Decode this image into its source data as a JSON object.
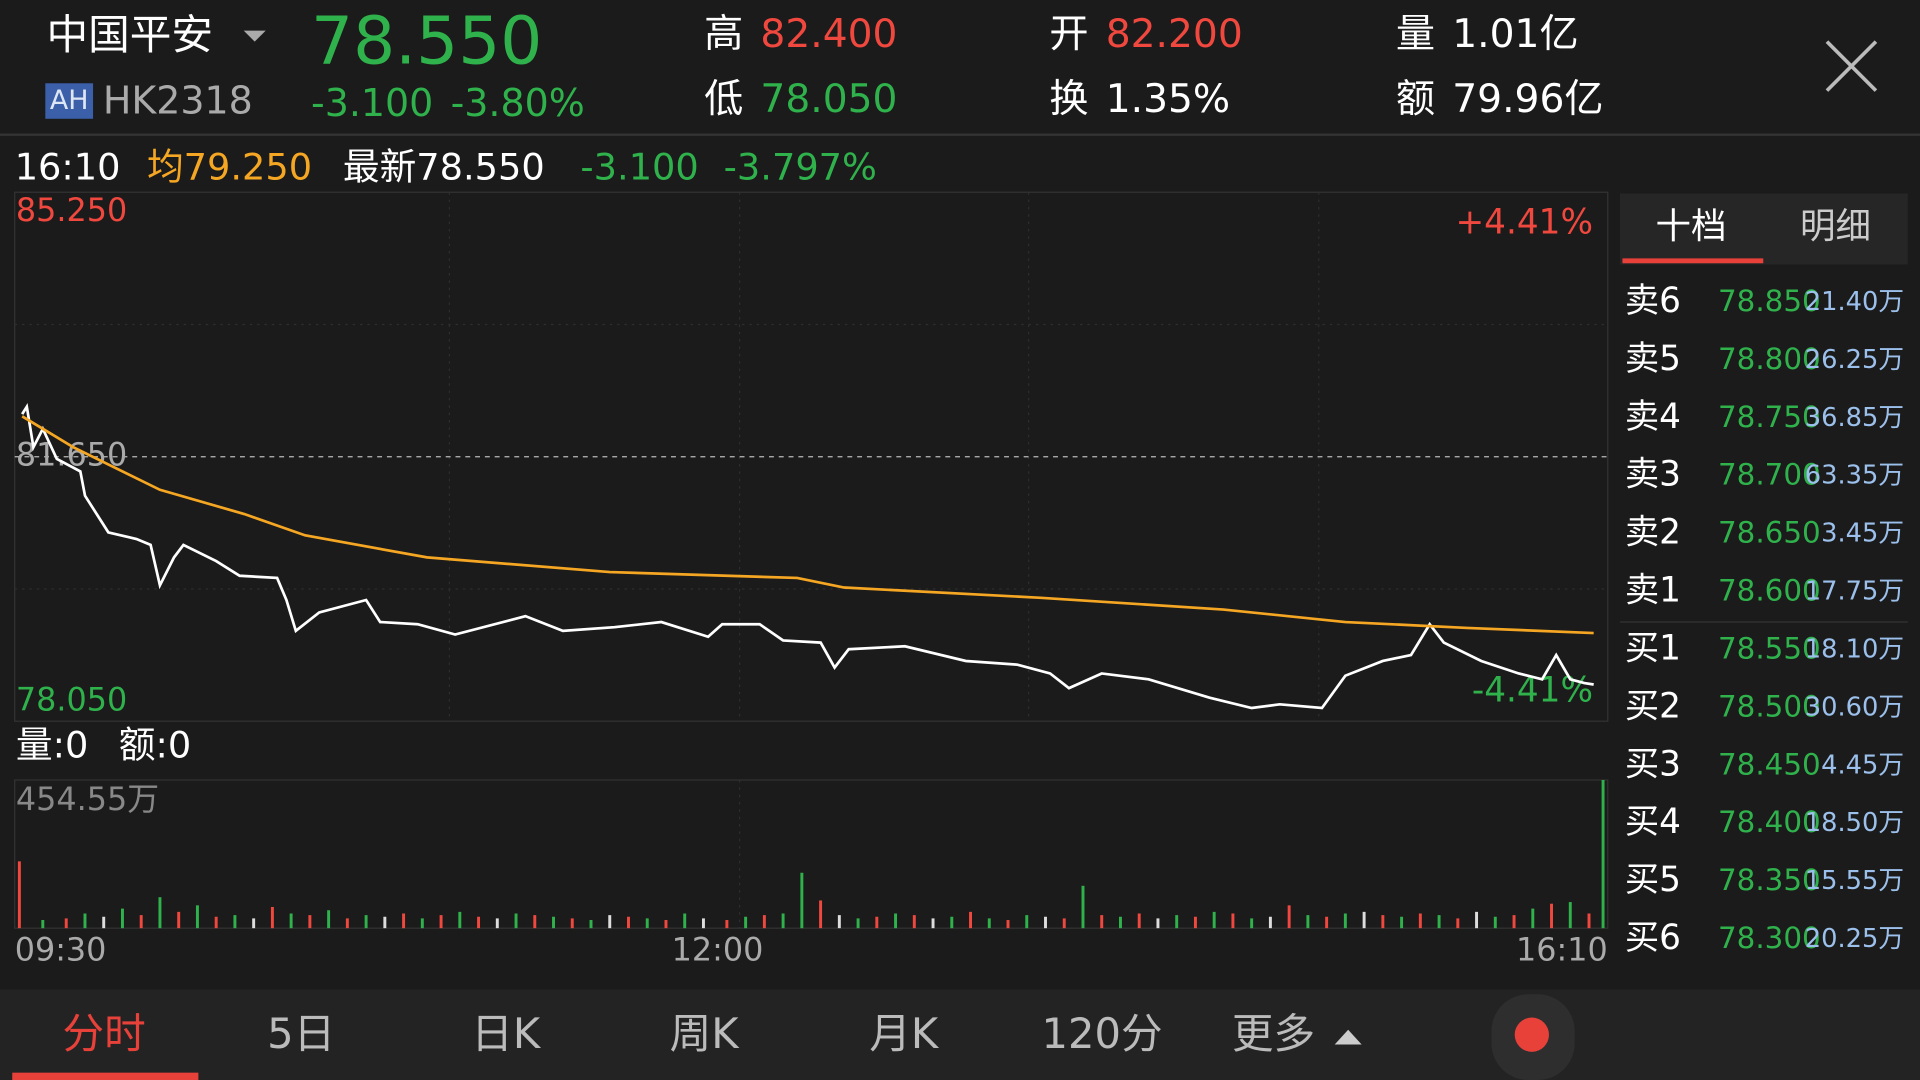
{
  "header": {
    "name": "中国平安",
    "badge": "AH",
    "code": "HK2318",
    "price": "78.550",
    "change": "-3.100",
    "change_pct": "-3.80%",
    "stats": [
      {
        "label": "高",
        "value": "82.400"
      },
      {
        "label": "低",
        "value": "78.050"
      },
      {
        "label": "开",
        "value": "82.200"
      },
      {
        "label": "换",
        "value": "1.35%"
      },
      {
        "label": "量",
        "value": "1.01亿"
      },
      {
        "label": "额",
        "value": "79.96亿"
      }
    ]
  },
  "info": {
    "time": "16:10",
    "avg": "均79.250",
    "latest": "最新78.550",
    "change": "-3.100",
    "change_pct": "-3.797%"
  },
  "volume_info": {
    "volume": "量:0",
    "amount": "额:0"
  },
  "chart_data": [
    {
      "type": "line",
      "xlim": [
        0,
        340
      ],
      "ylim": [
        78.05,
        85.25
      ],
      "yticks": [
        {
          "value": 85.25,
          "label": "85.250"
        },
        {
          "value": 81.65,
          "label": "81.650"
        },
        {
          "value": 78.05,
          "label": "78.050"
        }
      ],
      "annotations": [
        "+4.41%",
        "-4.41%"
      ],
      "series": [
        {
          "color": "#ffffff",
          "x": [
            1.6,
            2.6,
            4,
            6,
            9,
            14,
            15,
            20,
            26,
            29,
            31,
            34,
            36,
            43,
            48,
            56,
            58,
            60,
            65,
            75,
            78,
            86,
            94,
            109,
            117,
            128,
            138,
            148,
            151,
            159,
            164,
            172,
            175,
            178,
            190,
            203,
            214,
            221,
            225,
            232,
            242,
            255,
            264,
            270,
            279,
            284,
            292,
            298,
            302,
            305,
            313,
            321,
            326,
            329,
            332,
            335,
            337
          ],
          "values": [
            82.23,
            82.33,
            81.78,
            82.03,
            81.62,
            81.45,
            81.12,
            80.62,
            80.53,
            80.45,
            79.9,
            80.28,
            80.45,
            80.23,
            80.03,
            80.0,
            79.7,
            79.28,
            79.53,
            79.7,
            79.4,
            79.37,
            79.23,
            79.48,
            79.28,
            79.33,
            79.4,
            79.2,
            79.37,
            79.37,
            79.15,
            79.12,
            78.78,
            79.03,
            79.07,
            78.87,
            78.82,
            78.7,
            78.5,
            78.7,
            78.62,
            78.37,
            78.23,
            78.28,
            78.23,
            78.67,
            78.87,
            78.95,
            79.37,
            79.12,
            78.87,
            78.7,
            78.62,
            78.95,
            78.62,
            78.57,
            78.55
          ]
        },
        {
          "color": "#f5a623",
          "x": [
            1.6,
            12.5,
            31,
            49,
            62,
            88,
            127,
            167,
            177,
            219,
            258,
            284,
            310,
            337
          ],
          "values": [
            82.2,
            81.78,
            81.2,
            80.87,
            80.58,
            80.28,
            80.08,
            80.0,
            79.87,
            79.73,
            79.57,
            79.4,
            79.32,
            79.25
          ]
        }
      ]
    },
    {
      "type": "bar",
      "xlim": [
        0,
        340
      ],
      "ylim": [
        0,
        454.55
      ],
      "yticks": [
        {
          "value": 454.55,
          "label": "454.55万"
        }
      ],
      "xticks": [
        {
          "value": 0,
          "label": "09:30"
        },
        {
          "value": 150,
          "label": "12:00"
        },
        {
          "value": 340,
          "label": "16:10"
        }
      ],
      "x": [
        1,
        6,
        11,
        15,
        19,
        23,
        27,
        31,
        35,
        39,
        43,
        47,
        51,
        55,
        59,
        63,
        67,
        71,
        75,
        79,
        83,
        87,
        91,
        95,
        99,
        103,
        107,
        111,
        115,
        119,
        123,
        127,
        131,
        135,
        139,
        143,
        147,
        152,
        156,
        160,
        164,
        168,
        172,
        176,
        180,
        184,
        188,
        192,
        196,
        200,
        204,
        208,
        212,
        216,
        220,
        224,
        228,
        232,
        236,
        240,
        244,
        248,
        252,
        256,
        260,
        264,
        268,
        272,
        276,
        280,
        284,
        288,
        292,
        296,
        300,
        304,
        308,
        312,
        316,
        320,
        324,
        328,
        332,
        336,
        339
      ],
      "values": [
        205,
        25,
        30,
        45,
        35,
        60,
        40,
        95,
        50,
        70,
        35,
        40,
        30,
        65,
        45,
        40,
        55,
        30,
        40,
        35,
        45,
        30,
        40,
        50,
        35,
        30,
        45,
        40,
        35,
        30,
        25,
        40,
        35,
        30,
        25,
        45,
        30,
        25,
        35,
        40,
        45,
        170,
        85,
        40,
        30,
        35,
        45,
        40,
        30,
        35,
        50,
        30,
        25,
        40,
        35,
        30,
        130,
        40,
        35,
        45,
        30,
        40,
        35,
        50,
        45,
        30,
        35,
        70,
        40,
        35,
        45,
        50,
        40,
        35,
        45,
        40,
        30,
        50,
        35,
        40,
        60,
        75,
        80,
        45,
        454.55
      ],
      "colors": [
        "#f0483e",
        "#2fb24b",
        "#f0483e",
        "#2fb24b",
        "#dddddd",
        "#2fb24b",
        "#f0483e",
        "#2fb24b",
        "#f0483e",
        "#2fb24b",
        "#f0483e",
        "#2fb24b",
        "#dddddd",
        "#f0483e",
        "#2fb24b",
        "#f0483e",
        "#2fb24b",
        "#f0483e",
        "#2fb24b",
        "#dddddd",
        "#f0483e",
        "#2fb24b",
        "#f0483e",
        "#2fb24b",
        "#f0483e",
        "#dddddd",
        "#2fb24b",
        "#f0483e",
        "#2fb24b",
        "#f0483e",
        "#2fb24b",
        "#dddddd",
        "#f0483e",
        "#2fb24b",
        "#f0483e",
        "#2fb24b",
        "#dddddd",
        "#f0483e",
        "#2fb24b",
        "#f0483e",
        "#2fb24b",
        "#2fb24b",
        "#f0483e",
        "#dddddd",
        "#2fb24b",
        "#f0483e",
        "#2fb24b",
        "#f0483e",
        "#dddddd",
        "#2fb24b",
        "#f0483e",
        "#2fb24b",
        "#f0483e",
        "#2fb24b",
        "#dddddd",
        "#f0483e",
        "#2fb24b",
        "#f0483e",
        "#2fb24b",
        "#f0483e",
        "#dddddd",
        "#2fb24b",
        "#f0483e",
        "#2fb24b",
        "#f0483e",
        "#2fb24b",
        "#dddddd",
        "#f0483e",
        "#2fb24b",
        "#f0483e",
        "#2fb24b",
        "#dddddd",
        "#f0483e",
        "#2fb24b",
        "#f0483e",
        "#2fb24b",
        "#f0483e",
        "#dddddd",
        "#2fb24b",
        "#f0483e",
        "#2fb24b",
        "#f0483e",
        "#2fb24b",
        "#f0483e",
        "#2fb24b"
      ]
    }
  ],
  "order_book": {
    "tabs": [
      "十档",
      "明细"
    ],
    "rows": [
      {
        "side": "卖6",
        "price": "78.850",
        "volume": "21.40万"
      },
      {
        "side": "卖5",
        "price": "78.800",
        "volume": "26.25万"
      },
      {
        "side": "卖4",
        "price": "78.750",
        "volume": "36.85万"
      },
      {
        "side": "卖3",
        "price": "78.700",
        "volume": "63.35万"
      },
      {
        "side": "卖2",
        "price": "78.650",
        "volume": "3.45万"
      },
      {
        "side": "卖1",
        "price": "78.600",
        "volume": "17.75万"
      },
      {
        "side": "买1",
        "price": "78.550",
        "volume": "18.10万"
      },
      {
        "side": "买2",
        "price": "78.500",
        "volume": "30.60万"
      },
      {
        "side": "买3",
        "price": "78.450",
        "volume": "4.45万"
      },
      {
        "side": "买4",
        "price": "78.400",
        "volume": "18.50万"
      },
      {
        "side": "买5",
        "price": "78.350",
        "volume": "15.55万"
      },
      {
        "side": "买6",
        "price": "78.300",
        "volume": "20.25万"
      }
    ]
  },
  "tabs": [
    "分时",
    "5日",
    "日K",
    "周K",
    "月K",
    "120分",
    "更多"
  ]
}
